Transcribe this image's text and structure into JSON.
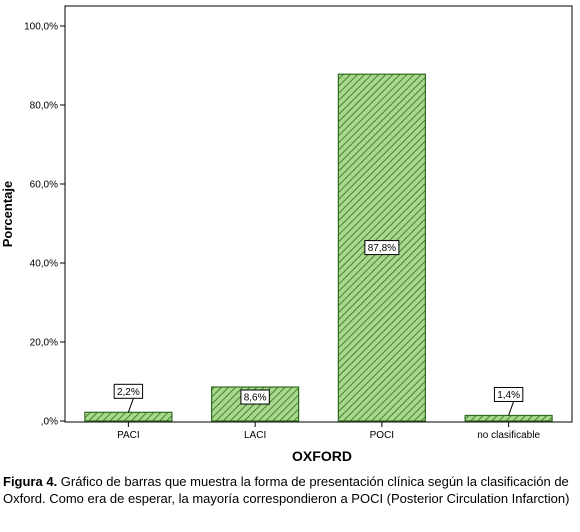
{
  "chart_data": {
    "type": "bar",
    "categories": [
      "PACI",
      "LACI",
      "POCI",
      "no clasificable"
    ],
    "values": [
      2.2,
      8.6,
      87.8,
      1.4
    ],
    "value_labels": [
      "2,2%",
      "8,6%",
      "87,8%",
      "1,4%"
    ],
    "xlabel": "OXFORD",
    "ylabel": "Porcentaje",
    "ylim": [
      0,
      100
    ],
    "yticks": [
      ",0%",
      "20,0%",
      "40,0%",
      "60,0%",
      "80,0%",
      "100,0%"
    ],
    "ytick_values": [
      0,
      20,
      40,
      60,
      80,
      100
    ],
    "grid": false,
    "legend": "none",
    "bar_fill": "#a8d88c",
    "bar_hatch": "#2f6b1f",
    "bar_edge": "#2f6b1f"
  },
  "caption": {
    "lead": "Figura 4.",
    "text": " Gráfico de barras que muestra la forma de presentación clínica según la clasificación de Oxford. Como era de esperar, la mayoría correspondieron a POCI (Posterior Circulation Infarction)"
  }
}
